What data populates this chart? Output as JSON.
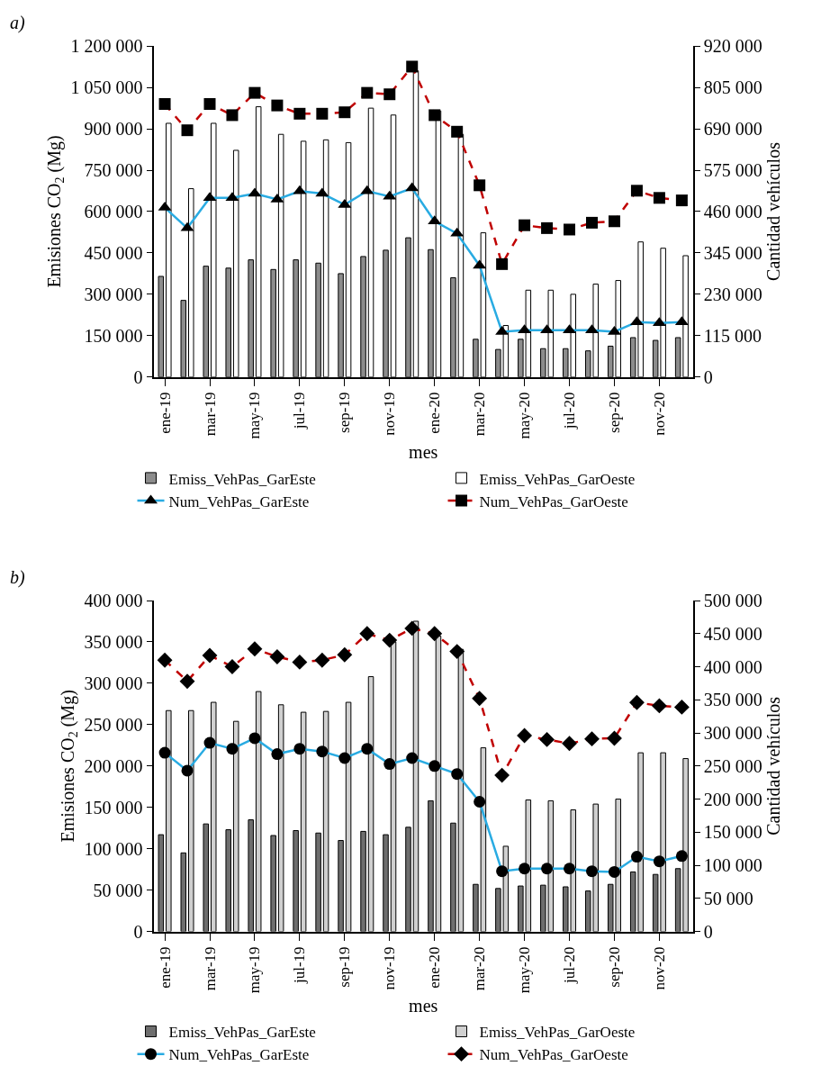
{
  "chart_data": [
    {
      "type": "bar",
      "annotations": [
        "a)"
      ],
      "xlabel": "mes",
      "ylabel": "Emisiones CO$_{2}$ (Mg)",
      "y2label": "Cantidad vehículos",
      "categories": [
        "ene-19",
        null,
        "mar-19",
        null,
        "may-19",
        null,
        "jul-19",
        null,
        "sep-19",
        null,
        "nov-19",
        null,
        "ene-20",
        null,
        "mar-20",
        null,
        "may-20",
        null,
        "jul-20",
        null,
        "sep-20",
        null,
        "nov-20",
        null
      ],
      "ylim": [
        0,
        1200000
      ],
      "yticks": [
        0,
        {
          "value": 150000,
          "label": "150 000"
        },
        {
          "value": 300000,
          "label": "300 000"
        },
        {
          "value": 450000,
          "label": "450 000"
        },
        {
          "value": 600000,
          "label": "600 000"
        },
        {
          "value": 750000,
          "label": "750 000"
        },
        {
          "value": 900000,
          "label": "900 000"
        },
        {
          "value": 1050000,
          "label": "1 050 000"
        },
        {
          "value": 1200000,
          "label": "1 200 000"
        }
      ],
      "y2lim": [
        0,
        920000
      ],
      "y2ticks": [
        0,
        {
          "value": 115000,
          "label": "115 000"
        },
        {
          "value": 230000,
          "label": "230 000"
        },
        {
          "value": 345000,
          "label": "345 000"
        },
        {
          "value": 460000,
          "label": "460 000"
        },
        {
          "value": 575000,
          "label": "575 000"
        },
        {
          "value": 690000,
          "label": "690 000"
        },
        {
          "value": 805000,
          "label": "805 000"
        },
        {
          "value": 920000,
          "label": "920 000"
        }
      ],
      "legend": "bottom",
      "series": [
        {
          "name": "Emiss_VehPas_GarEste",
          "color": "#8c8c8c",
          "values": [
            365000,
            278000,
            402000,
            395000,
            425000,
            390000,
            425000,
            413000,
            375000,
            437000,
            460000,
            505000,
            462000,
            360000,
            137000,
            100000,
            137000,
            103000,
            103000,
            95000,
            112000,
            143000,
            133000,
            143000
          ]
        },
        {
          "name": "Emiss_VehPas_GarOeste",
          "color": "#ffffff",
          "values": [
            920000,
            683000,
            920000,
            822000,
            980000,
            880000,
            855000,
            860000,
            850000,
            975000,
            950000,
            1110000,
            965000,
            880000,
            523000,
            187000,
            315000,
            315000,
            300000,
            337000,
            350000,
            490000,
            467000,
            440000
          ]
        },
        {
          "name": "Num_VehPas_GarEste",
          "type": "line",
          "axis": "y2",
          "color": "#29abe2",
          "marker": "triangle",
          "line_style": "solid",
          "values": [
            471000,
            414000,
            498000,
            498000,
            510000,
            494000,
            517000,
            510000,
            479000,
            517000,
            502000,
            525000,
            433000,
            399000,
            310000,
            126000,
            130000,
            130000,
            130000,
            130000,
            126000,
            153000,
            150000,
            153000
          ]
        },
        {
          "name": "Num_VehPas_GarOeste",
          "type": "line",
          "axis": "y2",
          "color": "#c00000",
          "marker": "square",
          "line_style": "dashed",
          "values": [
            759000,
            686000,
            759000,
            728000,
            790000,
            755000,
            732000,
            732000,
            736000,
            790000,
            786000,
            863000,
            728000,
            682000,
            533000,
            314000,
            422000,
            414000,
            410000,
            429000,
            433000,
            518000,
            498000,
            491000
          ]
        }
      ]
    },
    {
      "type": "bar",
      "annotations": [
        "b)"
      ],
      "xlabel": "mes",
      "ylabel": "Emisiones CO$_{2}$ (Mg)",
      "y2label": "Cantidad vehículos",
      "categories": [
        "ene-19",
        null,
        "mar-19",
        null,
        "may-19",
        null,
        "jul-19",
        null,
        "sep-19",
        null,
        "nov-19",
        null,
        "ene-20",
        null,
        "mar-20",
        null,
        "may-20",
        null,
        "jul-20",
        null,
        "sep-20",
        null,
        "nov-20",
        null
      ],
      "ylim": [
        0,
        400000
      ],
      "yticks": [
        0,
        {
          "value": 50000,
          "label": "50 000"
        },
        {
          "value": 100000,
          "label": "100 000"
        },
        {
          "value": 150000,
          "label": "150 000"
        },
        {
          "value": 200000,
          "label": "200 000"
        },
        {
          "value": 250000,
          "label": "250 000"
        },
        {
          "value": 300000,
          "label": "300 000"
        },
        {
          "value": 350000,
          "label": "350 000"
        },
        {
          "value": 400000,
          "label": "400 000"
        }
      ],
      "y2lim": [
        0,
        500000
      ],
      "y2ticks": [
        0,
        {
          "value": 50000,
          "label": "50 000"
        },
        {
          "value": 100000,
          "label": "100 000"
        },
        {
          "value": 150000,
          "label": "150 000"
        },
        {
          "value": 200000,
          "label": "200 000"
        },
        {
          "value": 250000,
          "label": "250 000"
        },
        {
          "value": 300000,
          "label": "300 000"
        },
        {
          "value": 350000,
          "label": "350 000"
        },
        {
          "value": 400000,
          "label": "400 000"
        },
        {
          "value": 450000,
          "label": "450 000"
        },
        {
          "value": 500000,
          "label": "500 000"
        }
      ],
      "legend": "bottom",
      "series": [
        {
          "name": "Emiss_VehPas_GarEste",
          "color": "#6e6e6e",
          "values": [
            117000,
            95000,
            130000,
            123000,
            135000,
            116000,
            122000,
            119000,
            110000,
            121000,
            117000,
            126000,
            158000,
            131000,
            57000,
            52000,
            55000,
            56000,
            54000,
            49000,
            57000,
            72000,
            69000,
            76000
          ]
        },
        {
          "name": "Emiss_VehPas_GarOeste",
          "color": "#d0d0d0",
          "values": [
            267000,
            267000,
            277000,
            254000,
            290000,
            274000,
            265000,
            266000,
            277000,
            308000,
            350000,
            375000,
            357000,
            341000,
            222000,
            103000,
            159000,
            158000,
            147000,
            154000,
            160000,
            216000,
            216000,
            209000
          ]
        },
        {
          "name": "Num_VehPas_GarEste",
          "type": "line",
          "axis": "y2",
          "color": "#29abe2",
          "marker": "circle",
          "line_style": "solid",
          "values": [
            270000,
            243000,
            285000,
            276000,
            292000,
            268000,
            276000,
            272000,
            262000,
            276000,
            253000,
            262000,
            250000,
            238000,
            196000,
            91000,
            95000,
            95000,
            95000,
            91000,
            90000,
            113000,
            106000,
            114000
          ]
        },
        {
          "name": "Num_VehPas_GarOeste",
          "type": "line",
          "axis": "y2",
          "color": "#c00000",
          "marker": "diamond",
          "line_style": "dashed",
          "values": [
            410000,
            378000,
            417000,
            400000,
            427000,
            415000,
            407000,
            410000,
            418000,
            450000,
            440000,
            458000,
            450000,
            423000,
            352000,
            236000,
            296000,
            290000,
            284000,
            291000,
            292000,
            346000,
            341000,
            339000
          ]
        }
      ]
    }
  ]
}
